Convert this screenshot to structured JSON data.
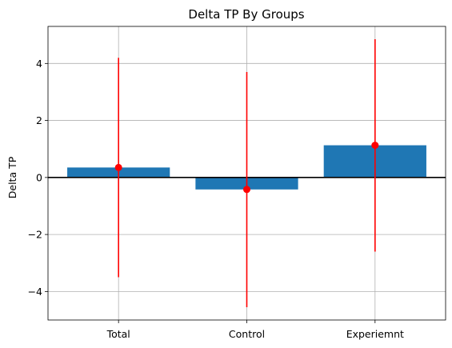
{
  "chart_data": {
    "type": "bar",
    "title": "Delta TP By Groups",
    "xlabel": "",
    "ylabel": "Delta TP",
    "categories": [
      "Total",
      "Control",
      "Experiemnt"
    ],
    "values": [
      0.35,
      -0.42,
      1.13
    ],
    "error_low": [
      -3.5,
      -4.55,
      -2.6
    ],
    "error_high": [
      4.2,
      3.7,
      4.85
    ],
    "ylim": [
      -5.0,
      5.3
    ],
    "yticks": [
      -4,
      -2,
      0,
      2,
      4
    ],
    "ytick_labels": [
      "−4",
      "−2",
      "0",
      "2",
      "4"
    ],
    "grid": true,
    "zero_line": true,
    "colors": {
      "bar": "#1f77b4",
      "error": "#ff0000",
      "grid": "#b0b0b0",
      "zero": "#000000"
    }
  }
}
